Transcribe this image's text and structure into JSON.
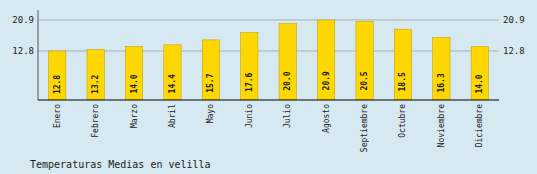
{
  "chart_data": {
    "type": "bar",
    "title": "Temperaturas Medias en velilla",
    "categories": [
      "Enero",
      "Febrero",
      "Marzo",
      "Abril",
      "Mayo",
      "Junio",
      "Julio",
      "Agosto",
      "Septiembre",
      "Octubre",
      "Noviembre",
      "Diciembre"
    ],
    "values": [
      12.8,
      13.2,
      14.0,
      14.4,
      15.7,
      17.6,
      20.0,
      20.9,
      20.5,
      18.5,
      16.3,
      14.0
    ],
    "value_labels": [
      "12.8",
      "13.2",
      "14.0",
      "14.4",
      "15.7",
      "17.6",
      "20.0",
      "20.9",
      "20.5",
      "18.5",
      "16.3",
      "14.0"
    ],
    "data_labels": true,
    "color": "#FFD700",
    "ylim": [
      0.0,
      23.5
    ],
    "yticks": [
      12.8,
      20.9
    ],
    "grid": true
  }
}
